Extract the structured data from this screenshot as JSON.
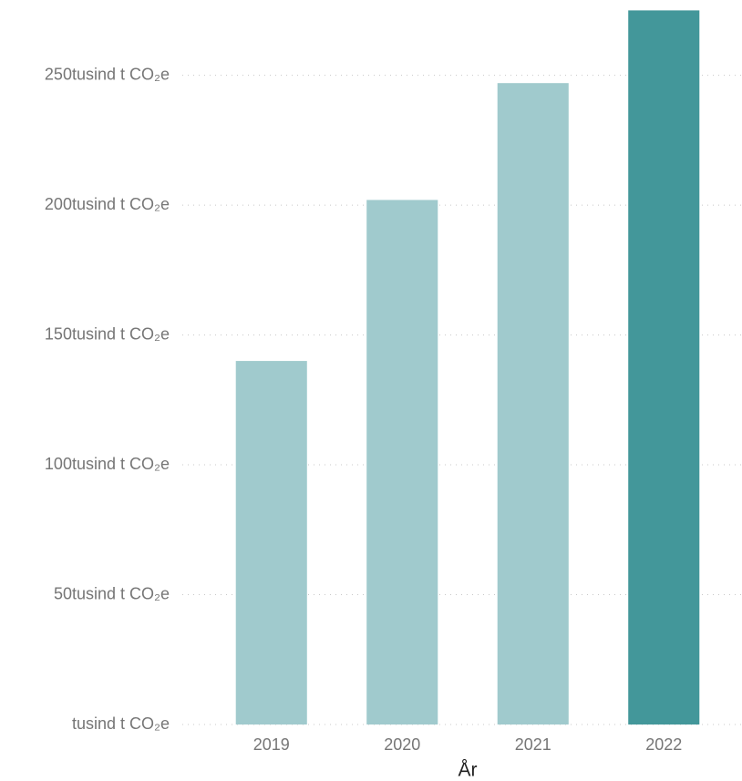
{
  "chart_data": {
    "type": "bar",
    "x_label": "År",
    "categories": [
      "2019",
      "2020",
      "2021",
      "2022"
    ],
    "values": [
      140,
      202,
      247,
      275
    ],
    "colors": [
      "#a0cacd",
      "#a0cacd",
      "#a0cacd",
      "#43979a"
    ],
    "ylim": [
      0,
      279
    ],
    "yticks": [
      {
        "value": 0,
        "label": "tusind t CO₂e"
      },
      {
        "value": 50,
        "label": "50tusind t CO₂e"
      },
      {
        "value": 100,
        "label": "100tusind t CO₂e"
      },
      {
        "value": 150,
        "label": "150tusind t CO₂e"
      },
      {
        "value": 200,
        "label": "200tusind t CO₂e"
      },
      {
        "value": 250,
        "label": "250tusind t CO₂e"
      }
    ],
    "grid": true
  }
}
